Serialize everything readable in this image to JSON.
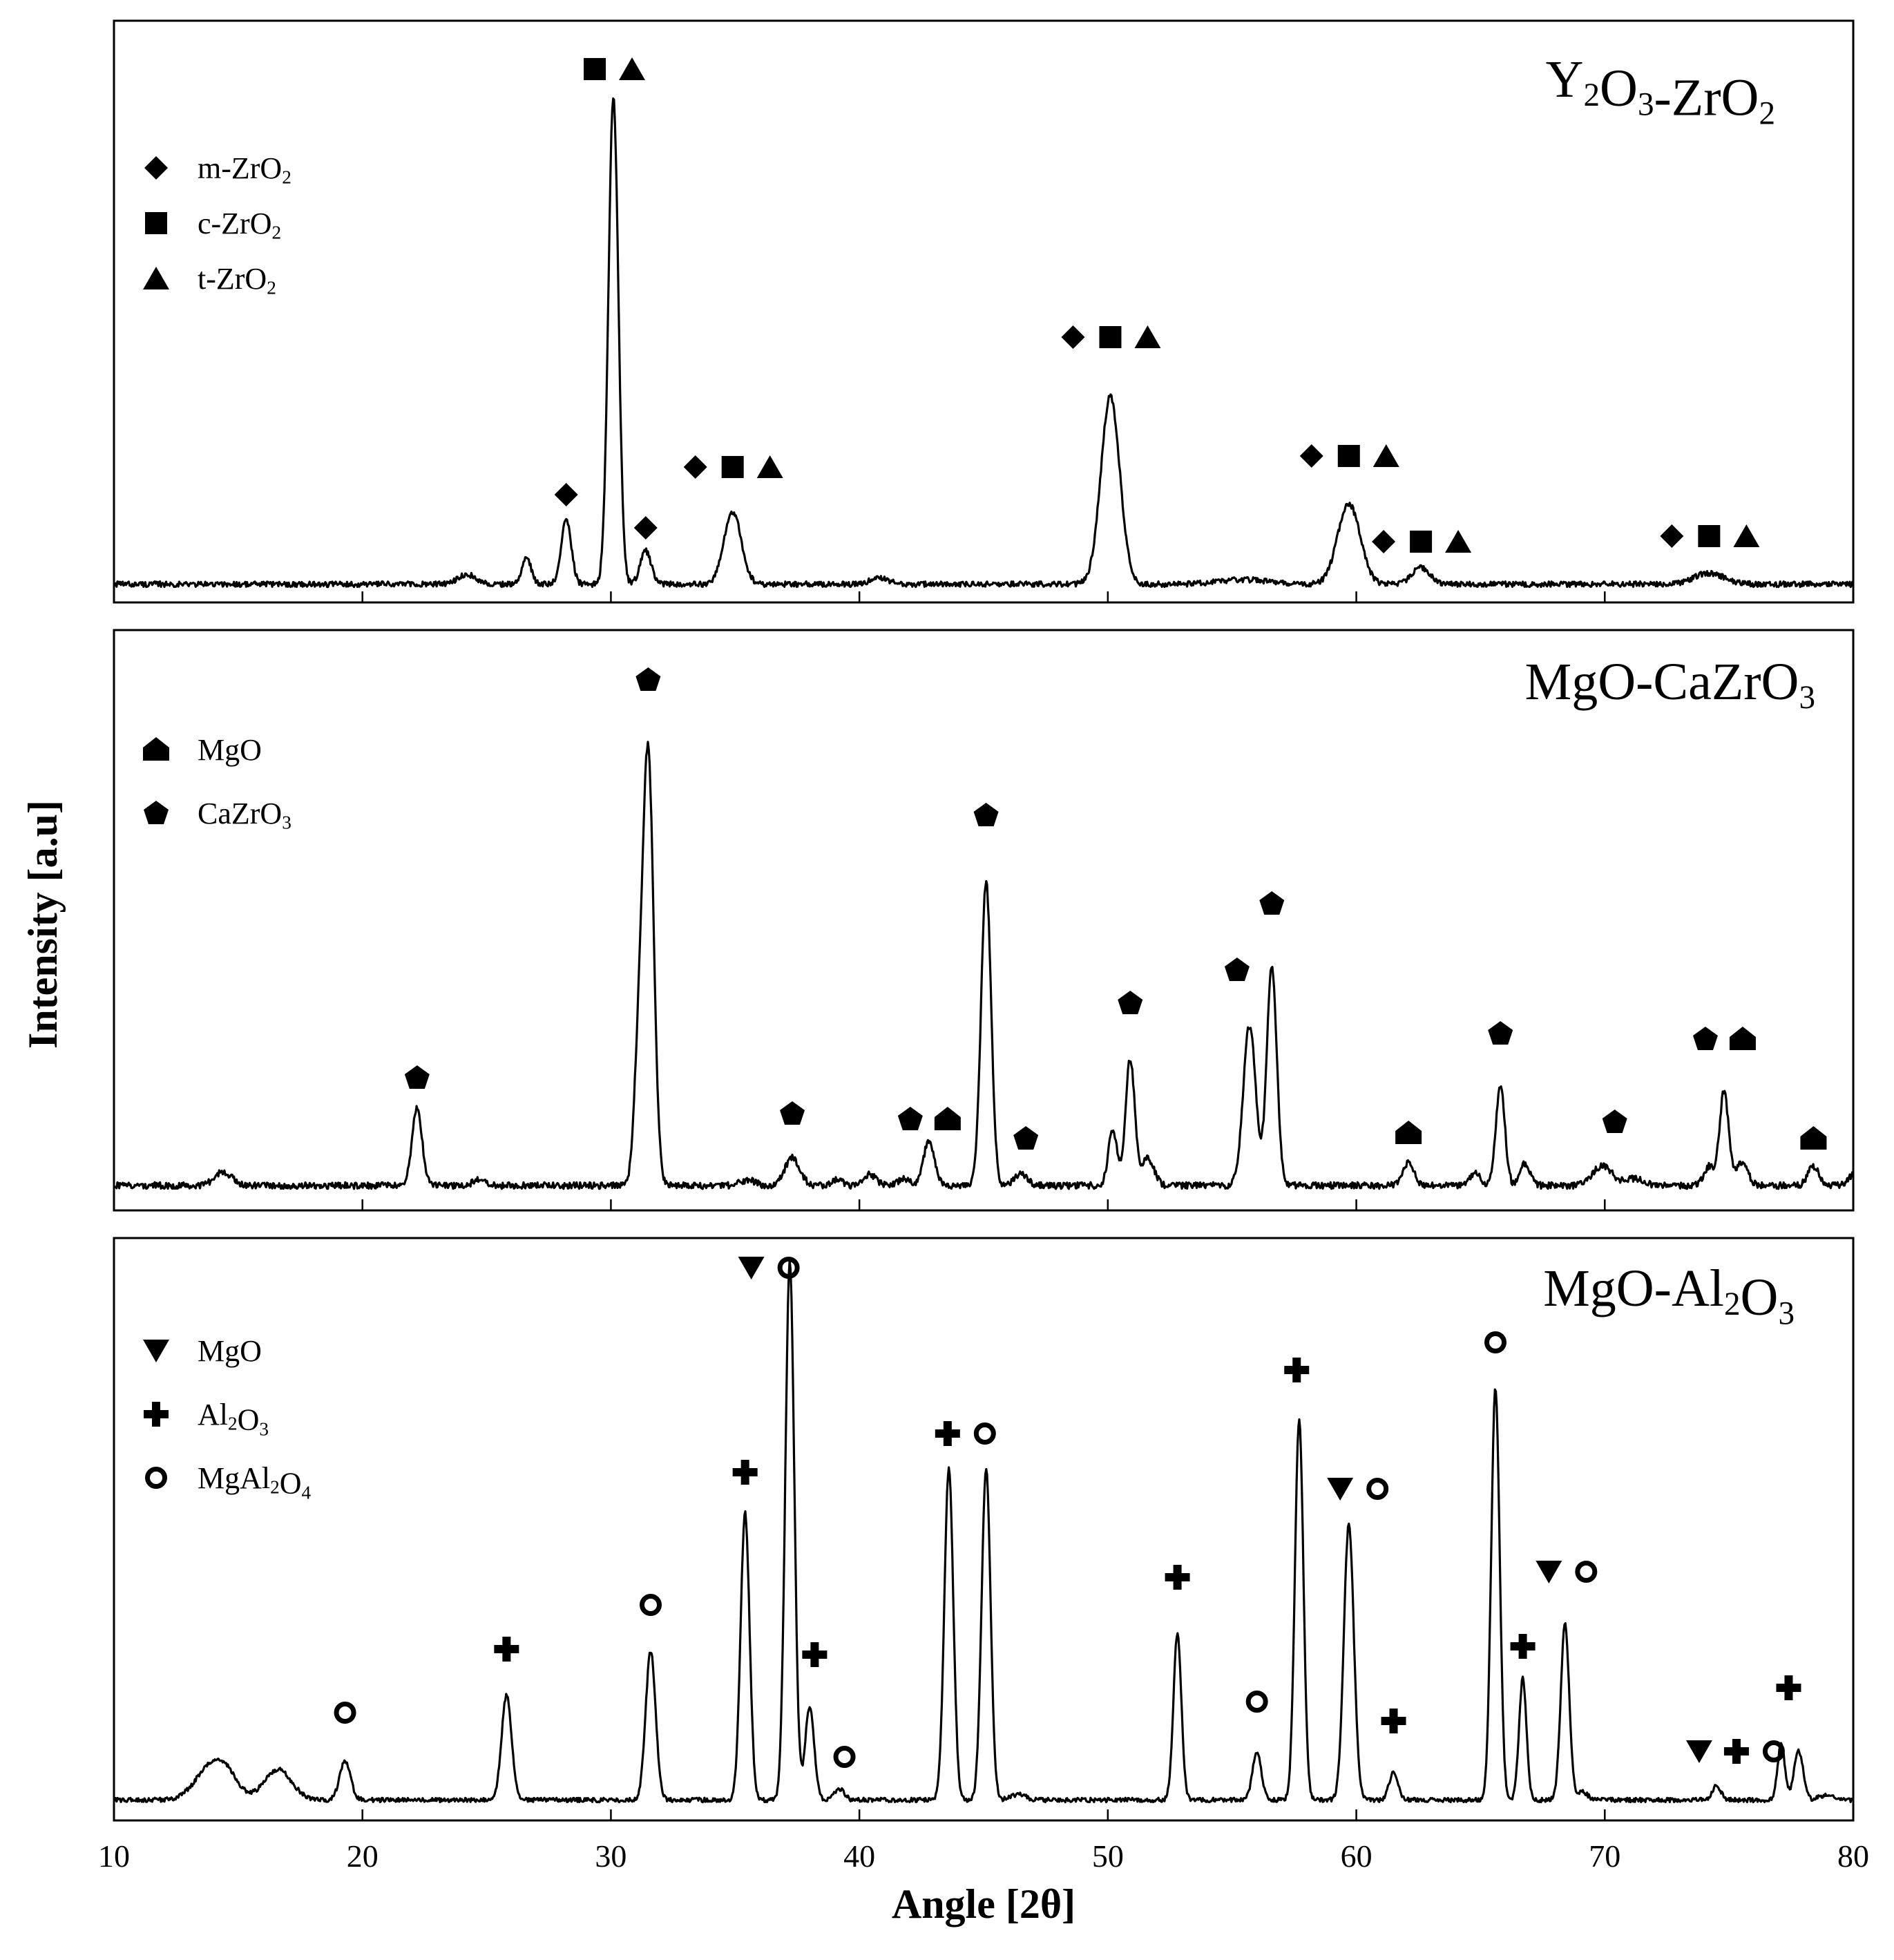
{
  "chart_data": {
    "type": "line",
    "xlabel": "Angle [2θ]",
    "ylabel": "Intensity [a.u]",
    "xlim": [
      10,
      80
    ],
    "xticks": [
      "10",
      "20",
      "30",
      "40",
      "50",
      "60",
      "70",
      "80"
    ],
    "colors": {
      "line": "#000000",
      "frame": "#000000",
      "background": "#ffffff"
    },
    "panels": [
      {
        "id": "yz",
        "title_parts": [
          {
            "t": "Y"
          },
          {
            "t": "2",
            "sub": true
          },
          {
            "t": "O"
          },
          {
            "t": "3",
            "sub": true
          },
          {
            "t": "-ZrO"
          },
          {
            "t": "2",
            "sub": true
          }
        ],
        "title_text": "Y2O3-ZrO2",
        "legend": [
          {
            "marker": "diamond",
            "label_parts": [
              {
                "t": "m-ZrO"
              },
              {
                "t": "2",
                "sub": true
              }
            ]
          },
          {
            "marker": "square",
            "label_parts": [
              {
                "t": "c-ZrO"
              },
              {
                "t": "2",
                "sub": true
              }
            ]
          },
          {
            "marker": "triangle-up",
            "label_parts": [
              {
                "t": "t-ZrO"
              },
              {
                "t": "2",
                "sub": true
              }
            ]
          }
        ],
        "baseline": 0.008,
        "noise": 0.005,
        "peaks": [
          [
            24.2,
            0.018,
            0.35
          ],
          [
            26.6,
            0.05,
            0.18
          ],
          [
            28.2,
            0.12,
            0.2
          ],
          [
            30.1,
            0.88,
            0.2
          ],
          [
            31.4,
            0.06,
            0.22
          ],
          [
            34.9,
            0.13,
            0.35
          ],
          [
            40.8,
            0.01,
            0.4
          ],
          [
            50.1,
            0.34,
            0.38
          ],
          [
            55.5,
            0.008,
            1.0
          ],
          [
            59.7,
            0.145,
            0.45
          ],
          [
            62.6,
            0.03,
            0.35
          ],
          [
            74.2,
            0.02,
            0.6
          ]
        ],
        "annotations": [
          {
            "x": 28.2,
            "y": 0.17,
            "markers": [
              "diamond"
            ]
          },
          {
            "x": 30.1,
            "y": 0.94,
            "markers": [
              "square",
              "triangle-up"
            ]
          },
          {
            "x": 31.4,
            "y": 0.11,
            "markers": [
              "diamond"
            ]
          },
          {
            "x": 34.9,
            "y": 0.22,
            "markers": [
              "diamond",
              "square",
              "triangle-up"
            ]
          },
          {
            "x": 50.1,
            "y": 0.455,
            "markers": [
              "diamond",
              "square",
              "triangle-up"
            ]
          },
          {
            "x": 59.7,
            "y": 0.24,
            "markers": [
              "diamond",
              "square",
              "triangle-up"
            ]
          },
          {
            "x": 62.6,
            "y": 0.085,
            "markers": [
              "diamond",
              "square",
              "triangle-up"
            ]
          },
          {
            "x": 74.2,
            "y": 0.095,
            "markers": [
              "diamond",
              "square",
              "triangle-up"
            ]
          }
        ]
      },
      {
        "id": "mc",
        "title_parts": [
          {
            "t": "MgO-CaZrO"
          },
          {
            "t": "3",
            "sub": true
          }
        ],
        "title_text": "MgO-CaZrO3",
        "legend": [
          {
            "marker": "house",
            "label_parts": [
              {
                "t": "MgO"
              }
            ]
          },
          {
            "marker": "pentagon",
            "label_parts": [
              {
                "t": "CaZrO"
              },
              {
                "t": "3",
                "sub": true
              }
            ]
          }
        ],
        "baseline": 0.02,
        "noise": 0.006,
        "peaks": [
          [
            14.4,
            0.025,
            0.35
          ],
          [
            22.2,
            0.14,
            0.2
          ],
          [
            24.7,
            0.01,
            0.25
          ],
          [
            31.1,
            0.2,
            0.18
          ],
          [
            31.5,
            0.78,
            0.22
          ],
          [
            35.5,
            0.01,
            0.3
          ],
          [
            37.3,
            0.05,
            0.3
          ],
          [
            39.1,
            0.012,
            0.2
          ],
          [
            40.4,
            0.02,
            0.25
          ],
          [
            41.8,
            0.012,
            0.25
          ],
          [
            42.8,
            0.08,
            0.22
          ],
          [
            45.1,
            0.55,
            0.2
          ],
          [
            46.5,
            0.02,
            0.25
          ],
          [
            50.2,
            0.1,
            0.18
          ],
          [
            50.9,
            0.23,
            0.18
          ],
          [
            51.6,
            0.05,
            0.25
          ],
          [
            55.7,
            0.29,
            0.25
          ],
          [
            56.6,
            0.395,
            0.2
          ],
          [
            62.1,
            0.04,
            0.22
          ],
          [
            64.8,
            0.025,
            0.2
          ],
          [
            65.8,
            0.18,
            0.18
          ],
          [
            66.8,
            0.04,
            0.2
          ],
          [
            69.9,
            0.035,
            0.4
          ],
          [
            71.2,
            0.012,
            0.35
          ],
          [
            74.2,
            0.035,
            0.2
          ],
          [
            74.8,
            0.17,
            0.18
          ],
          [
            75.5,
            0.04,
            0.25
          ],
          [
            78.4,
            0.035,
            0.22
          ],
          [
            80.0,
            0.02,
            0.2
          ]
        ],
        "annotations": [
          {
            "x": 22.2,
            "y": 0.215,
            "markers": [
              "pentagon"
            ]
          },
          {
            "x": 31.5,
            "y": 0.935,
            "markers": [
              "pentagon"
            ]
          },
          {
            "x": 37.3,
            "y": 0.15,
            "markers": [
              "pentagon"
            ]
          },
          {
            "x": 42.8,
            "y": 0.14,
            "markers": [
              "pentagon",
              "house"
            ]
          },
          {
            "x": 45.1,
            "y": 0.69,
            "markers": [
              "pentagon"
            ]
          },
          {
            "x": 46.7,
            "y": 0.105,
            "markers": [
              "pentagon"
            ]
          },
          {
            "x": 50.9,
            "y": 0.35,
            "markers": [
              "pentagon"
            ]
          },
          {
            "x": 55.2,
            "y": 0.41,
            "markers": [
              "pentagon"
            ]
          },
          {
            "x": 56.6,
            "y": 0.53,
            "markers": [
              "pentagon"
            ]
          },
          {
            "x": 62.1,
            "y": 0.115,
            "markers": [
              "house"
            ]
          },
          {
            "x": 65.8,
            "y": 0.295,
            "markers": [
              "pentagon"
            ]
          },
          {
            "x": 70.4,
            "y": 0.135,
            "markers": [
              "pentagon"
            ]
          },
          {
            "x": 74.8,
            "y": 0.285,
            "markers": [
              "pentagon",
              "house"
            ]
          },
          {
            "x": 78.4,
            "y": 0.105,
            "markers": [
              "house"
            ]
          }
        ]
      },
      {
        "id": "ma",
        "title_parts": [
          {
            "t": "MgO-Al"
          },
          {
            "t": "2",
            "sub": true
          },
          {
            "t": "O"
          },
          {
            "t": "3",
            "sub": true
          }
        ],
        "title_text": "MgO-Al2O3",
        "legend": [
          {
            "marker": "triangle-down",
            "label_parts": [
              {
                "t": "MgO"
              }
            ]
          },
          {
            "marker": "cross",
            "label_parts": [
              {
                "t": "Al"
              },
              {
                "t": "2",
                "sub": true
              },
              {
                "t": "O"
              },
              {
                "t": "3",
                "sub": true
              }
            ]
          },
          {
            "marker": "ring",
            "label_parts": [
              {
                "t": "MgAl"
              },
              {
                "t": "2",
                "sub": true
              },
              {
                "t": "O"
              },
              {
                "t": "4",
                "sub": true
              }
            ]
          }
        ],
        "baseline": 0.012,
        "noise": 0.004,
        "peaks": [
          [
            13.8,
            0.05,
            0.6
          ],
          [
            14.5,
            0.04,
            0.5
          ],
          [
            16.6,
            0.055,
            0.55
          ],
          [
            19.3,
            0.07,
            0.22
          ],
          [
            25.8,
            0.19,
            0.2
          ],
          [
            31.6,
            0.27,
            0.2
          ],
          [
            35.4,
            0.52,
            0.18
          ],
          [
            37.2,
            0.975,
            0.18
          ],
          [
            38.0,
            0.17,
            0.18
          ],
          [
            39.2,
            0.02,
            0.2
          ],
          [
            43.6,
            0.6,
            0.18
          ],
          [
            45.1,
            0.6,
            0.18
          ],
          [
            46.4,
            0.01,
            0.3
          ],
          [
            52.8,
            0.3,
            0.16
          ],
          [
            56.0,
            0.085,
            0.18
          ],
          [
            57.7,
            0.69,
            0.17
          ],
          [
            59.7,
            0.5,
            0.2
          ],
          [
            61.5,
            0.05,
            0.18
          ],
          [
            65.6,
            0.745,
            0.17
          ],
          [
            66.7,
            0.22,
            0.15
          ],
          [
            68.4,
            0.32,
            0.17
          ],
          [
            69.1,
            0.015,
            0.2
          ],
          [
            74.5,
            0.025,
            0.18
          ],
          [
            77.1,
            0.1,
            0.15
          ],
          [
            77.8,
            0.09,
            0.18
          ],
          [
            78.9,
            0.008,
            0.3
          ]
        ],
        "annotations": [
          {
            "x": 19.3,
            "y": 0.17,
            "markers": [
              "ring"
            ]
          },
          {
            "x": 25.8,
            "y": 0.285,
            "markers": [
              "cross"
            ]
          },
          {
            "x": 31.6,
            "y": 0.365,
            "markers": [
              "ring"
            ]
          },
          {
            "x": 35.4,
            "y": 0.605,
            "markers": [
              "cross"
            ]
          },
          {
            "x": 36.4,
            "y": 0.975,
            "markers": [
              "triangle-down",
              "ring"
            ]
          },
          {
            "x": 38.2,
            "y": 0.275,
            "markers": [
              "cross"
            ]
          },
          {
            "x": 39.4,
            "y": 0.09,
            "markers": [
              "ring"
            ]
          },
          {
            "x": 44.3,
            "y": 0.675,
            "markers": [
              "cross",
              "ring"
            ]
          },
          {
            "x": 52.8,
            "y": 0.415,
            "markers": [
              "cross"
            ]
          },
          {
            "x": 56.0,
            "y": 0.19,
            "markers": [
              "ring"
            ]
          },
          {
            "x": 57.6,
            "y": 0.79,
            "markers": [
              "cross"
            ]
          },
          {
            "x": 60.1,
            "y": 0.575,
            "markers": [
              "triangle-down",
              "ring"
            ]
          },
          {
            "x": 61.5,
            "y": 0.155,
            "markers": [
              "cross"
            ]
          },
          {
            "x": 65.6,
            "y": 0.84,
            "markers": [
              "ring"
            ]
          },
          {
            "x": 66.7,
            "y": 0.29,
            "markers": [
              "cross"
            ]
          },
          {
            "x": 68.5,
            "y": 0.425,
            "markers": [
              "triangle-down",
              "ring"
            ]
          },
          {
            "x": 75.3,
            "y": 0.1,
            "markers": [
              "triangle-down",
              "cross",
              "ring"
            ]
          },
          {
            "x": 77.4,
            "y": 0.215,
            "markers": [
              "cross"
            ]
          }
        ]
      }
    ]
  }
}
